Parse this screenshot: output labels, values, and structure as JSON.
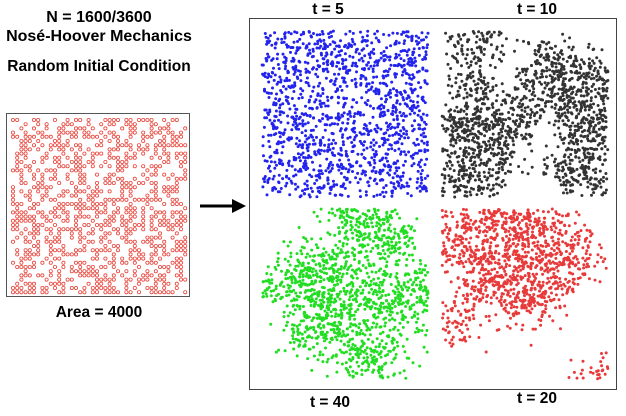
{
  "left": {
    "line1": "N = 1600/3600",
    "line2": "Nosé-Hoover Mechanics",
    "subtitle": "Random Initial Condition",
    "area": "Area = 4000",
    "color": "#e8453c"
  },
  "panels": [
    {
      "label": "t = 5",
      "color": "#2323ee",
      "pattern": "uniform"
    },
    {
      "label": "t = 10",
      "color": "#333333",
      "pattern": "clustered"
    },
    {
      "label": "t = 40",
      "color": "#22dd22",
      "pattern": "strong"
    },
    {
      "label": "t = 20",
      "color": "#e83a3a",
      "pattern": "medium"
    }
  ],
  "arrow_icon": "right-arrow-icon"
}
